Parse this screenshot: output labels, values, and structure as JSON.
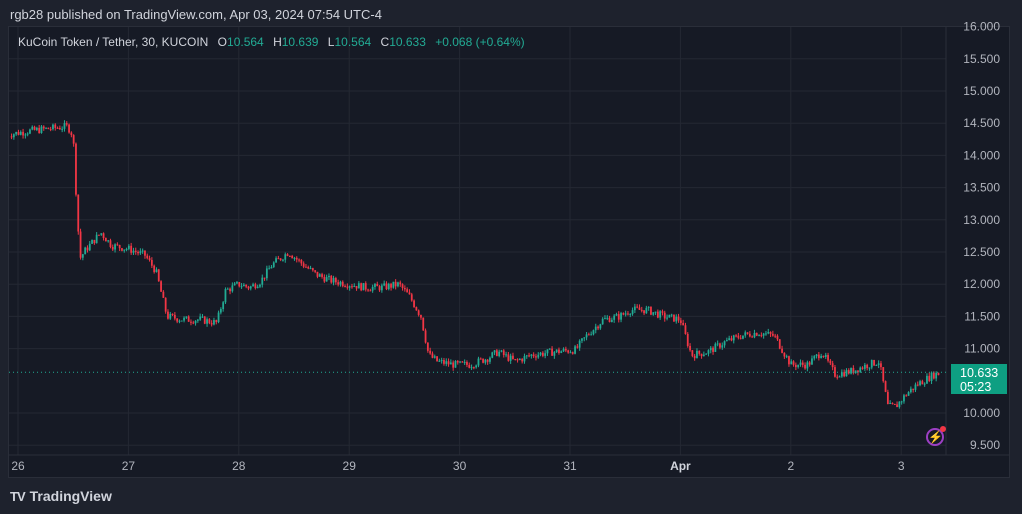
{
  "header": {
    "publish_line": "rgb28 published on TradingView.com, Apr 03, 2024 07:54 UTC-4"
  },
  "legend": {
    "symbol": "KuCoin Token / Tether, 30, KUCOIN",
    "open_label": "O",
    "open": "10.564",
    "high_label": "H",
    "high": "10.639",
    "low_label": "L",
    "low": "10.564",
    "close_label": "C",
    "close": "10.633",
    "change": "+0.068 (+0.64%)"
  },
  "price_badge": {
    "price": "10.633",
    "countdown": "05:23"
  },
  "footer": {
    "brand": "TradingView",
    "logo_mark": "TV"
  },
  "colors": {
    "up": "#22ab94",
    "down": "#f23645",
    "grid": "#242833",
    "axis_text": "#b2b5be",
    "background": "#161a25",
    "last_price_line": "#22ab94"
  },
  "chart_data": {
    "type": "candlestick",
    "title": "KuCoin Token / Tether, 30, KUCOIN",
    "interval": "30m",
    "xlabel": "",
    "ylabel": "",
    "ylim": [
      9.3,
      16.0
    ],
    "y_ticks": [
      "16.000",
      "15.500",
      "15.000",
      "14.500",
      "14.000",
      "13.500",
      "13.000",
      "12.500",
      "12.000",
      "11.500",
      "11.000",
      "10.000",
      "9.500"
    ],
    "x_ticks": [
      {
        "label": "26",
        "day": 0
      },
      {
        "label": "27",
        "day": 1
      },
      {
        "label": "28",
        "day": 2
      },
      {
        "label": "29",
        "day": 3
      },
      {
        "label": "30",
        "day": 4
      },
      {
        "label": "31",
        "day": 5
      },
      {
        "label": "Apr",
        "day": 6,
        "bold": true
      },
      {
        "label": "2",
        "day": 7
      },
      {
        "label": "3",
        "day": 8
      }
    ],
    "grid": true,
    "last_price": 10.633,
    "price_path": [
      [
        -0.1,
        14.32
      ],
      [
        0.1,
        14.38
      ],
      [
        0.3,
        14.42
      ],
      [
        0.45,
        14.45
      ],
      [
        0.5,
        14.3
      ],
      [
        0.52,
        13.6
      ],
      [
        0.56,
        12.4
      ],
      [
        0.62,
        12.55
      ],
      [
        0.75,
        12.8
      ],
      [
        0.85,
        12.6
      ],
      [
        1.0,
        12.55
      ],
      [
        1.15,
        12.45
      ],
      [
        1.25,
        12.2
      ],
      [
        1.35,
        11.5
      ],
      [
        1.5,
        11.45
      ],
      [
        1.65,
        11.45
      ],
      [
        1.8,
        11.4
      ],
      [
        1.88,
        11.9
      ],
      [
        2.0,
        12.0
      ],
      [
        2.1,
        11.95
      ],
      [
        2.2,
        12.05
      ],
      [
        2.3,
        12.3
      ],
      [
        2.45,
        12.5
      ],
      [
        2.55,
        12.35
      ],
      [
        2.7,
        12.15
      ],
      [
        2.85,
        12.05
      ],
      [
        3.0,
        12.0
      ],
      [
        3.15,
        11.95
      ],
      [
        3.3,
        11.95
      ],
      [
        3.45,
        12.0
      ],
      [
        3.55,
        11.8
      ],
      [
        3.65,
        11.5
      ],
      [
        3.72,
        10.9
      ],
      [
        3.8,
        10.8
      ],
      [
        3.95,
        10.75
      ],
      [
        4.1,
        10.75
      ],
      [
        4.25,
        10.85
      ],
      [
        4.35,
        10.95
      ],
      [
        4.5,
        10.8
      ],
      [
        4.65,
        10.9
      ],
      [
        4.85,
        10.95
      ],
      [
        5.05,
        10.98
      ],
      [
        5.15,
        11.2
      ],
      [
        5.3,
        11.45
      ],
      [
        5.45,
        11.5
      ],
      [
        5.55,
        11.6
      ],
      [
        5.7,
        11.6
      ],
      [
        5.85,
        11.5
      ],
      [
        6.0,
        11.45
      ],
      [
        6.1,
        10.9
      ],
      [
        6.25,
        10.95
      ],
      [
        6.4,
        11.1
      ],
      [
        6.55,
        11.2
      ],
      [
        6.7,
        11.25
      ],
      [
        6.85,
        11.2
      ],
      [
        7.0,
        10.75
      ],
      [
        7.15,
        10.75
      ],
      [
        7.28,
        10.95
      ],
      [
        7.4,
        10.6
      ],
      [
        7.55,
        10.65
      ],
      [
        7.7,
        10.75
      ],
      [
        7.8,
        10.8
      ],
      [
        7.88,
        10.1
      ],
      [
        7.95,
        10.1
      ],
      [
        8.05,
        10.3
      ],
      [
        8.15,
        10.45
      ],
      [
        8.3,
        10.6
      ],
      [
        8.4,
        10.63
      ]
    ],
    "notes": "30-minute candles from Mar 26 to Apr 3, 2024; sharp drop from ~14.4 to ~12.4 on Mar 26, drift down to ~11.4, rally to ~12.5 on Mar 28, fall to ~10.7 on Mar 29-30, recovery to ~11.6 (spike to ~12.0) on Mar 31, then decline to low ~10.0 on Apr 2 and recovery to 10.633."
  }
}
